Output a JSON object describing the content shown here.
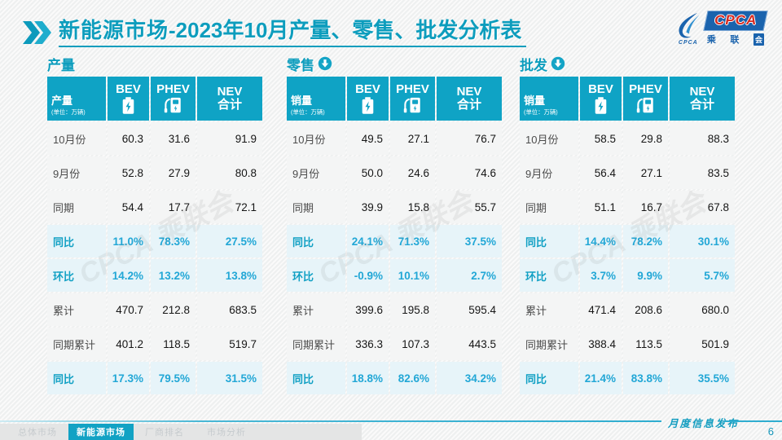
{
  "slide": {
    "title_main": "新能源市场",
    "title_rest": "-2023年10月产量、零售、批发分析表",
    "watermark": "CPCA 乘联会",
    "footer_label": "月度信息发布",
    "page_number": "6"
  },
  "logo": {
    "text": "CPCA",
    "sub_chars": [
      "乘",
      "联"
    ],
    "sub_box": "会",
    "caption": "CPCA"
  },
  "colors": {
    "accent_teal": "#0d9dbd",
    "header_teal": "#0fa3c5",
    "percent_blue": "#22a7d6",
    "percent_row_bg": "#e7f4f9",
    "logo_blue": "#1a63ad",
    "logo_red": "#d6281e"
  },
  "tables": [
    {
      "section_title": "产量",
      "has_arrow": false,
      "corner_label": "产量",
      "corner_unit": "(单位：万辆)",
      "col_bev": "BEV",
      "col_phev": "PHEV",
      "col_nev_1": "NEV",
      "col_nev_2": "合计",
      "rows": [
        {
          "label": "10月份",
          "values": [
            "60.3",
            "31.6",
            "91.9"
          ],
          "pct": false
        },
        {
          "label": "9月份",
          "values": [
            "52.8",
            "27.9",
            "80.8"
          ],
          "pct": false
        },
        {
          "label": "同期",
          "values": [
            "54.4",
            "17.7",
            "72.1"
          ],
          "pct": false
        },
        {
          "label": "同比",
          "values": [
            "11.0%",
            "78.3%",
            "27.5%"
          ],
          "pct": true
        },
        {
          "label": "环比",
          "values": [
            "14.2%",
            "13.2%",
            "13.8%"
          ],
          "pct": true
        },
        {
          "label": "累计",
          "values": [
            "470.7",
            "212.8",
            "683.5"
          ],
          "pct": false
        },
        {
          "label": "同期累计",
          "values": [
            "401.2",
            "118.5",
            "519.7"
          ],
          "pct": false
        },
        {
          "label": "同比",
          "values": [
            "17.3%",
            "79.5%",
            "31.5%"
          ],
          "pct": true
        }
      ]
    },
    {
      "section_title": "零售",
      "has_arrow": true,
      "corner_label": "销量",
      "corner_unit": "(单位：万辆)",
      "col_bev": "BEV",
      "col_phev": "PHEV",
      "col_nev_1": "NEV",
      "col_nev_2": "合计",
      "rows": [
        {
          "label": "10月份",
          "values": [
            "49.5",
            "27.1",
            "76.7"
          ],
          "pct": false
        },
        {
          "label": "9月份",
          "values": [
            "50.0",
            "24.6",
            "74.6"
          ],
          "pct": false
        },
        {
          "label": "同期",
          "values": [
            "39.9",
            "15.8",
            "55.7"
          ],
          "pct": false
        },
        {
          "label": "同比",
          "values": [
            "24.1%",
            "71.3%",
            "37.5%"
          ],
          "pct": true
        },
        {
          "label": "环比",
          "values": [
            "-0.9%",
            "10.1%",
            "2.7%"
          ],
          "pct": true
        },
        {
          "label": "累计",
          "values": [
            "399.6",
            "195.8",
            "595.4"
          ],
          "pct": false
        },
        {
          "label": "同期累计",
          "values": [
            "336.3",
            "107.3",
            "443.5"
          ],
          "pct": false
        },
        {
          "label": "同比",
          "values": [
            "18.8%",
            "82.6%",
            "34.2%"
          ],
          "pct": true
        }
      ]
    },
    {
      "section_title": "批发",
      "has_arrow": true,
      "corner_label": "销量",
      "corner_unit": "(单位：万辆)",
      "col_bev": "BEV",
      "col_phev": "PHEV",
      "col_nev_1": "NEV",
      "col_nev_2": "合计",
      "rows": [
        {
          "label": "10月份",
          "values": [
            "58.5",
            "29.8",
            "88.3"
          ],
          "pct": false
        },
        {
          "label": "9月份",
          "values": [
            "56.4",
            "27.1",
            "83.5"
          ],
          "pct": false
        },
        {
          "label": "同期",
          "values": [
            "51.1",
            "16.7",
            "67.8"
          ],
          "pct": false
        },
        {
          "label": "同比",
          "values": [
            "14.4%",
            "78.2%",
            "30.1%"
          ],
          "pct": true
        },
        {
          "label": "环比",
          "values": [
            "3.7%",
            "9.9%",
            "5.7%"
          ],
          "pct": true
        },
        {
          "label": "累计",
          "values": [
            "471.4",
            "208.6",
            "680.0"
          ],
          "pct": false
        },
        {
          "label": "同期累计",
          "values": [
            "388.4",
            "113.5",
            "501.9"
          ],
          "pct": false
        },
        {
          "label": "同比",
          "values": [
            "21.4%",
            "83.8%",
            "35.5%"
          ],
          "pct": true
        }
      ]
    }
  ],
  "footer_tabs": [
    {
      "label": "总体市场",
      "active": false
    },
    {
      "label": "新能源市场",
      "active": true
    },
    {
      "label": "厂商排名",
      "active": false
    },
    {
      "label": "市场分析",
      "active": false
    }
  ],
  "chart_data": {
    "type": "table",
    "title": "新能源市场-2023年10月产量、零售、批发分析表",
    "note": "three tables: production / retail / wholesale, columns BEV, PHEV, NEV合计; rows 10月份, 9月份, 同期, 同比, 环比, 累计, 同期累计, 同比"
  }
}
